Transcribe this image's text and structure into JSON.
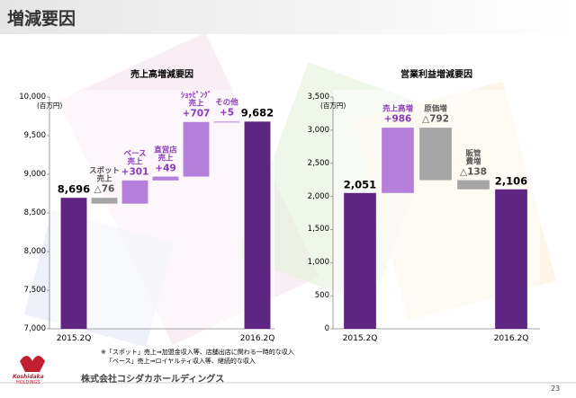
{
  "header": {
    "title": "増減要因"
  },
  "chart_data": [
    {
      "type": "waterfall",
      "title": "売上高増減要因",
      "unit": "(百万円)",
      "categories": [
        "2015.2Q",
        "スポット\n売上",
        "ベース\n売上",
        "直営店\n売上",
        "ｼｮｯﾋﾟﾝｸﾞ\n売上",
        "その他",
        "2016.2Q"
      ],
      "measure": [
        "absolute",
        "relative",
        "relative",
        "relative",
        "relative",
        "relative",
        "absolute"
      ],
      "values": [
        8696,
        -76,
        301,
        49,
        707,
        5,
        9682
      ],
      "value_labels": [
        "8,696",
        "△76",
        "+301",
        "+49",
        "+707",
        "+5",
        "9,682"
      ],
      "colors": [
        "#5e2583",
        "#a6a6a6",
        "#b57fdc",
        "#b57fdc",
        "#b57fdc",
        "#b57fdc",
        "#5e2583"
      ],
      "ylim": [
        7000,
        10000
      ],
      "yticks": [
        {
          "value": 7000,
          "label": "7,000"
        },
        {
          "value": 7500,
          "label": "7,500"
        },
        {
          "value": 8000,
          "label": "8,000"
        },
        {
          "value": 8500,
          "label": "8,500"
        },
        {
          "value": 9000,
          "label": "9,000"
        },
        {
          "value": 9500,
          "label": "9,500"
        },
        {
          "value": 10000,
          "label": "10,000"
        }
      ]
    },
    {
      "type": "waterfall",
      "title": "営業利益増減要因",
      "unit": "(百万円)",
      "categories": [
        "2015.2Q",
        "売上高増",
        "原価増",
        "販管\n費増",
        "2016.2Q"
      ],
      "measure": [
        "absolute",
        "relative",
        "relative",
        "relative",
        "absolute"
      ],
      "values": [
        2051,
        986,
        -792,
        -138,
        2106
      ],
      "value_labels": [
        "2,051",
        "+986",
        "△792",
        "△138",
        "2,106"
      ],
      "colors": [
        "#5e2583",
        "#b57fdc",
        "#a6a6a6",
        "#a6a6a6",
        "#5e2583"
      ],
      "ylim": [
        0,
        3500
      ],
      "yticks": [
        0,
        500,
        {
          "value": 1000,
          "label": "1,000"
        },
        {
          "value": 1500,
          "label": "1,500"
        },
        {
          "value": 2000,
          "label": "2,000"
        },
        {
          "value": 2500,
          "label": "2,500"
        },
        {
          "value": 3000,
          "label": "3,000"
        },
        {
          "value": 3500,
          "label": "3,500"
        }
      ]
    }
  ],
  "footnote": [
    "※「スポット」売上⇒加盟金収入等、店舗出店に関わる一時的な収入",
    "「ベース」売上⇒ロイヤルティ収入等、継続的な収入"
  ],
  "footer": {
    "logo": "Koshidaka",
    "logo_sub": "HOLDINGS",
    "company": "株式会社コシダカホールディングス",
    "page": "23"
  }
}
